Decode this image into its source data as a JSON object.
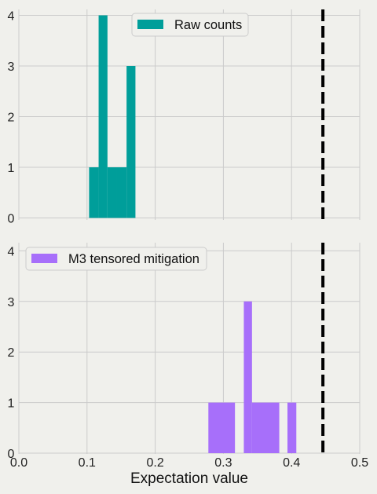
{
  "chart_data": [
    {
      "type": "bar",
      "subtype": "histogram",
      "legend": "Raw counts",
      "legend_position": "top-center",
      "color": "#009e9a",
      "bins": [
        {
          "x0": 0.103,
          "x1": 0.117,
          "count": 1
        },
        {
          "x0": 0.117,
          "x1": 0.13,
          "count": 4
        },
        {
          "x0": 0.13,
          "x1": 0.144,
          "count": 1
        },
        {
          "x0": 0.144,
          "x1": 0.158,
          "count": 1
        },
        {
          "x0": 0.158,
          "x1": 0.171,
          "count": 3
        }
      ],
      "reference_line": {
        "x": 0.446,
        "style": "dashed",
        "color": "#000000"
      },
      "xlim": [
        0.0,
        0.5
      ],
      "ylim": [
        0,
        4.2
      ],
      "yticks": [
        "0",
        "1",
        "2",
        "3",
        "4"
      ],
      "grid": true
    },
    {
      "type": "bar",
      "subtype": "histogram",
      "legend": "M3 tensored mitigation",
      "legend_position": "top-left",
      "color": "#a76ffa",
      "bins": [
        {
          "x0": 0.278,
          "x1": 0.317,
          "count": 1
        },
        {
          "x0": 0.33,
          "x1": 0.342,
          "count": 3
        },
        {
          "x0": 0.342,
          "x1": 0.382,
          "count": 1
        },
        {
          "x0": 0.394,
          "x1": 0.407,
          "count": 1
        }
      ],
      "reference_line": {
        "x": 0.446,
        "style": "dashed",
        "color": "#000000"
      },
      "xlim": [
        0.0,
        0.5
      ],
      "ylim": [
        0,
        4.2
      ],
      "xticks": [
        "0.0",
        "0.1",
        "0.2",
        "0.3",
        "0.4",
        "0.5"
      ],
      "yticks": [
        "0",
        "1",
        "2",
        "3",
        "4"
      ],
      "xlabel": "Expectation value",
      "grid": true
    }
  ],
  "colors": {
    "background": "#f0f0ec",
    "grid": "#cbcbcb",
    "dashed_line": "#000000"
  }
}
